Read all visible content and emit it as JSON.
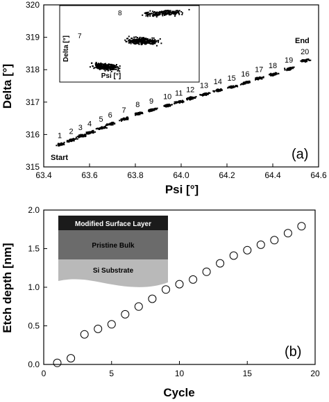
{
  "chart_data": [
    {
      "type": "scatter",
      "panel_label": "(a)",
      "xlabel": "Psi [°]",
      "ylabel": "Delta [°]",
      "xlim": [
        63.4,
        64.6
      ],
      "ylim": [
        315,
        320
      ],
      "xticks": [
        "63.4",
        "63.6",
        "63.8",
        "64.0",
        "64.2",
        "64.4",
        "64.6"
      ],
      "yticks": [
        "315",
        "316",
        "317",
        "318",
        "319",
        "320"
      ],
      "annotations": {
        "start": "Start",
        "end": "End"
      },
      "cycle_labels": [
        "1",
        "2",
        "3",
        "4",
        "5",
        "6",
        "7",
        "8",
        "9",
        "10",
        "11",
        "12",
        "13",
        "14",
        "15",
        "16",
        "17",
        "18",
        "19",
        "20"
      ],
      "clusters": [
        {
          "label": "1",
          "psi": 63.47,
          "delta": 315.72
        },
        {
          "label": "2",
          "psi": 63.52,
          "delta": 315.85
        },
        {
          "label": "3",
          "psi": 63.56,
          "delta": 315.97
        },
        {
          "label": "4",
          "psi": 63.6,
          "delta": 316.08
        },
        {
          "label": "5",
          "psi": 63.65,
          "delta": 316.22
        },
        {
          "label": "6",
          "psi": 63.69,
          "delta": 316.35
        },
        {
          "label": "7",
          "psi": 63.75,
          "delta": 316.5
        },
        {
          "label": "8",
          "psi": 63.81,
          "delta": 316.67
        },
        {
          "label": "9",
          "psi": 63.87,
          "delta": 316.78
        },
        {
          "label": "10",
          "psi": 63.94,
          "delta": 316.92
        },
        {
          "label": "11",
          "psi": 63.99,
          "delta": 317.03
        },
        {
          "label": "12",
          "psi": 64.04,
          "delta": 317.14
        },
        {
          "label": "13",
          "psi": 64.1,
          "delta": 317.26
        },
        {
          "label": "14",
          "psi": 64.16,
          "delta": 317.38
        },
        {
          "label": "15",
          "psi": 64.22,
          "delta": 317.49
        },
        {
          "label": "16",
          "psi": 64.28,
          "delta": 317.62
        },
        {
          "label": "17",
          "psi": 64.34,
          "delta": 317.76
        },
        {
          "label": "18",
          "psi": 64.4,
          "delta": 317.88
        },
        {
          "label": "19",
          "psi": 64.47,
          "delta": 318.05
        },
        {
          "label": "20",
          "psi": 64.54,
          "delta": 318.3
        }
      ],
      "inset": {
        "xlabel": "Psi [°]",
        "ylabel": "Delta [°]",
        "labels": [
          "7",
          "8"
        ]
      }
    },
    {
      "type": "scatter",
      "panel_label": "(b)",
      "xlabel": "Cycle",
      "ylabel": "Etch depth [nm]",
      "xlim": [
        0,
        20
      ],
      "ylim": [
        0,
        2.0
      ],
      "xticks": [
        "0",
        "5",
        "10",
        "15",
        "20"
      ],
      "yticks": [
        "0.0",
        "0.5",
        "1.0",
        "1.5",
        "2.0"
      ],
      "x": [
        1,
        2,
        3,
        4,
        5,
        6,
        7,
        8,
        9,
        10,
        11,
        12,
        13,
        14,
        15,
        16,
        17,
        18,
        19
      ],
      "y": [
        0.02,
        0.08,
        0.39,
        0.46,
        0.52,
        0.65,
        0.75,
        0.85,
        0.97,
        1.04,
        1.1,
        1.2,
        1.31,
        1.41,
        1.48,
        1.55,
        1.61,
        1.7,
        1.79
      ],
      "marker": "open-circle",
      "layers": [
        "Modified Surface Layer",
        "Pristine Bulk",
        "Si Substrate"
      ]
    }
  ]
}
